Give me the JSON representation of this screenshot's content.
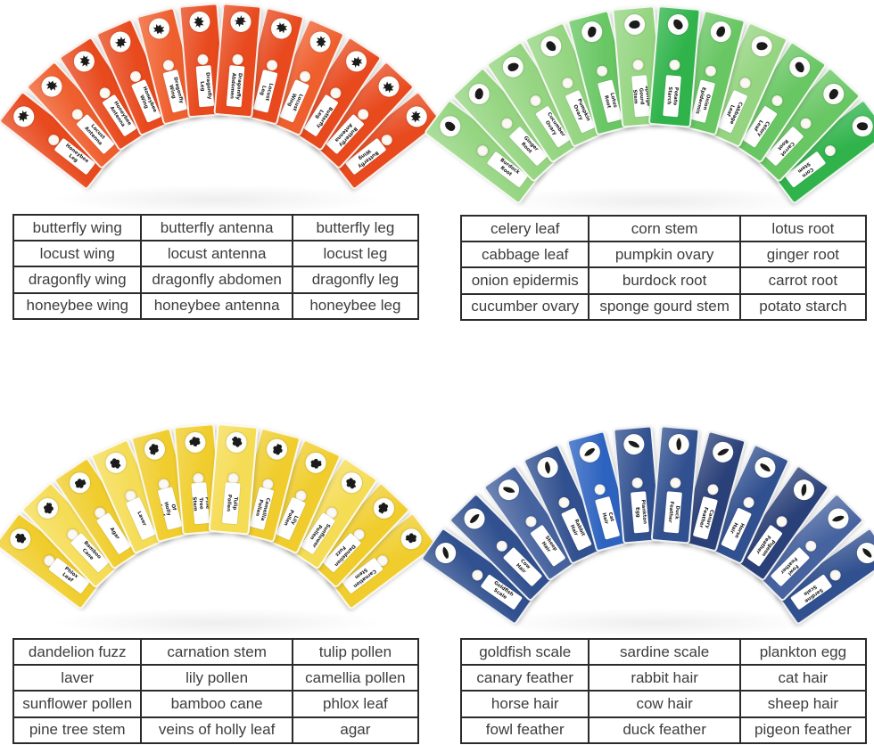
{
  "fans": [
    {
      "id": "insects",
      "theme": "insect specimens (red slides)",
      "palette": {
        "base": "#e8491d",
        "light": "#ef5f2e",
        "dark": "#dd3c14",
        "bright": "#e8491d"
      },
      "slides": [
        {
          "label": "Honeybee Leg",
          "shade": "base"
        },
        {
          "label": "Locust Antenna",
          "shade": "light"
        },
        {
          "label": "Honeybee Antenna",
          "shade": "base"
        },
        {
          "label": "Honeybee Wing",
          "shade": "base"
        },
        {
          "label": "Dragonfly Wing",
          "shade": "light"
        },
        {
          "label": "Dragonfly Leg",
          "shade": "base"
        },
        {
          "label": "Dragonfly Abdomen",
          "shade": "base"
        },
        {
          "label": "Locust Leg",
          "shade": "base"
        },
        {
          "label": "Locust Wing",
          "shade": "light"
        },
        {
          "label": "Butterfly Leg",
          "shade": "base"
        },
        {
          "label": "Butterfly Antenna",
          "shade": "base"
        },
        {
          "label": "Butterfly Wing",
          "shade": "base"
        }
      ]
    },
    {
      "id": "plants",
      "theme": "plant specimens (green slides)",
      "palette": {
        "base": "#68c663",
        "light": "#95d581",
        "dark": "#2fb34a",
        "bright": "#4fc058"
      },
      "slides": [
        {
          "label": "Burdock Root",
          "shade": "light"
        },
        {
          "label": "Ginger Root",
          "shade": "light"
        },
        {
          "label": "Cucumber Ovary",
          "shade": "light"
        },
        {
          "label": "Pumpkin Ovary",
          "shade": "light"
        },
        {
          "label": "Lotus Root",
          "shade": "base"
        },
        {
          "label": "Sponge Gourd Stem",
          "shade": "light"
        },
        {
          "label": "Potato Starch",
          "shade": "dark"
        },
        {
          "label": "Onion Epidermis",
          "shade": "base"
        },
        {
          "label": "Cabbage Leaf",
          "shade": "light"
        },
        {
          "label": "Celery Leaf",
          "shade": "base"
        },
        {
          "label": "Carrot Root",
          "shade": "base"
        },
        {
          "label": "Corn Stem",
          "shade": "dark"
        }
      ]
    },
    {
      "id": "flowers",
      "theme": "flower and plant specimens (yellow slides)",
      "palette": {
        "base": "#f0cd2c",
        "light": "#f5dc55",
        "dark": "#e9c320",
        "bright": "#f0cd2c"
      },
      "slides": [
        {
          "label": "Phlox Leaf",
          "shade": "base"
        },
        {
          "label": "Bamboo Cane",
          "shade": "light"
        },
        {
          "label": "Agar",
          "shade": "base"
        },
        {
          "label": "Laver",
          "shade": "light"
        },
        {
          "label": "Veins Of Holly Leaf",
          "shade": "base"
        },
        {
          "label": "Pine Tree Stem",
          "shade": "base"
        },
        {
          "label": "Tulip Pollen",
          "shade": "light"
        },
        {
          "label": "Camellia Pollen",
          "shade": "base"
        },
        {
          "label": "Lily Pollen",
          "shade": "base"
        },
        {
          "label": "Sunflower Pollen",
          "shade": "light"
        },
        {
          "label": "Dandelion Fuzz",
          "shade": "base"
        },
        {
          "label": "Carnation Stem",
          "shade": "base"
        }
      ]
    },
    {
      "id": "animals",
      "theme": "animal specimens (blue slides)",
      "palette": {
        "base": "#31508f",
        "light": "#46639f",
        "dark": "#2a4078",
        "bright": "#2d63c0"
      },
      "slides": [
        {
          "label": "Goldfish Scale",
          "shade": "base"
        },
        {
          "label": "Cow Hair",
          "shade": "base"
        },
        {
          "label": "Sheep Hair",
          "shade": "light"
        },
        {
          "label": "Rabbit Hair",
          "shade": "base"
        },
        {
          "label": "Cat Hair",
          "shade": "bright"
        },
        {
          "label": "Plankton Egg",
          "shade": "base"
        },
        {
          "label": "Duck Feather",
          "shade": "base"
        },
        {
          "label": "Canary Feather",
          "shade": "dark"
        },
        {
          "label": "Horse Hair",
          "shade": "base"
        },
        {
          "label": "Pigeon Feather",
          "shade": "dark"
        },
        {
          "label": "Fowl Feather",
          "shade": "light"
        },
        {
          "label": "Sardine Scale",
          "shade": "base"
        }
      ]
    }
  ],
  "tables": [
    {
      "id": "insects",
      "rows": [
        [
          "butterfly wing",
          "butterfly antenna",
          "butterfly leg"
        ],
        [
          "locust wing",
          "locust antenna",
          "locust leg"
        ],
        [
          "dragonfly wing",
          "dragonfly abdomen",
          "dragonfly leg"
        ],
        [
          "honeybee wing",
          "honeybee antenna",
          "honeybee leg"
        ]
      ]
    },
    {
      "id": "plants",
      "rows": [
        [
          "celery leaf",
          "corn stem",
          "lotus root"
        ],
        [
          "cabbage leaf",
          "pumpkin ovary",
          "ginger root"
        ],
        [
          "onion epidermis",
          "burdock root",
          "carrot root"
        ],
        [
          "cucumber ovary",
          "sponge gourd stem",
          "potato starch"
        ]
      ]
    },
    {
      "id": "flowers",
      "rows": [
        [
          "dandelion fuzz",
          "carnation stem",
          "tulip pollen"
        ],
        [
          "laver",
          "lily pollen",
          "camellia pollen"
        ],
        [
          "sunflower pollen",
          "bamboo cane",
          "phlox leaf"
        ],
        [
          "pine tree stem",
          "veins of holly leaf",
          "agar"
        ]
      ]
    },
    {
      "id": "animals",
      "rows": [
        [
          "goldfish scale",
          "sardine scale",
          "plankton egg"
        ],
        [
          "canary feather",
          "rabbit hair",
          "cat hair"
        ],
        [
          "horse hair",
          "cow hair",
          "sheep hair"
        ],
        [
          "fowl feather",
          "duck feather",
          "pigeon feather"
        ]
      ]
    }
  ]
}
